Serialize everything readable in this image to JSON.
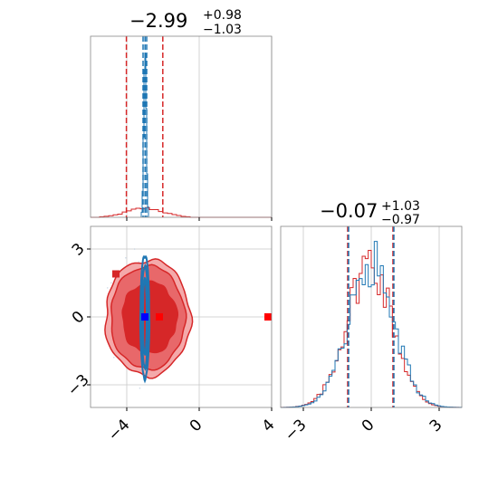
{
  "colors": {
    "red": "#d62728",
    "red_light": "#f4a9aa",
    "red_mid": "#e8686a",
    "blue": "#1f77b4",
    "blue_marker": "#0000ff",
    "red_marker": "#ff0000",
    "grid": "#c8c8c8",
    "axes": "#888888"
  },
  "chart_data": [
    {
      "type": "histogram",
      "panel": "top-left",
      "title": {
        "value": "−2.99",
        "plus": "+0.98",
        "minus": "−1.03"
      },
      "xlim": [
        -6,
        4
      ],
      "grid": true,
      "series": [
        {
          "name": "",
          "color": "#d62728",
          "quantiles": [
            -4.02,
            -2.99,
            -2.01
          ],
          "shape": "wide",
          "center": -2.99,
          "sigma": 1.0
        },
        {
          "name": "",
          "color": "#1f77b4",
          "quantiles": [
            -3.1,
            -2.99,
            -2.9
          ],
          "shape": "narrow",
          "center": -2.99,
          "sigma": 0.05
        }
      ]
    },
    {
      "type": "contour",
      "panel": "bottom-left",
      "xlim": [
        -6,
        4
      ],
      "ylim": [
        -4,
        4
      ],
      "xticks": [
        "−4",
        "0",
        "4"
      ],
      "yticks": [
        "3",
        "0",
        "−3"
      ],
      "xtick_values": [
        -4,
        0,
        4
      ],
      "ytick_values": [
        3,
        0,
        -3
      ],
      "grid": true,
      "red_center": [
        -2.99,
        -0.07
      ],
      "blue_center": [
        -3.0,
        0.0
      ],
      "markers": [
        {
          "x": -3.0,
          "y": 0.0,
          "color": "#0000ff"
        },
        {
          "x": -2.2,
          "y": 0.0,
          "color": "#ff0000"
        },
        {
          "x": 3.8,
          "y": 0.0,
          "color": "#ff0000"
        },
        {
          "x": -4.6,
          "y": 1.9,
          "color": "#d62728"
        }
      ]
    },
    {
      "type": "histogram",
      "panel": "bottom-right",
      "title": {
        "value": "−0.07",
        "plus": "+1.03",
        "minus": "−0.97"
      },
      "xlim": [
        -4,
        4
      ],
      "xticks": [
        "−3",
        "0",
        "3"
      ],
      "xtick_values": [
        -3,
        0,
        3
      ],
      "grid": true,
      "series": [
        {
          "name": "",
          "color": "#d62728",
          "quantiles": [
            -1.04,
            -0.07,
            0.96
          ],
          "center": -0.07,
          "sigma": 1.0
        },
        {
          "name": "",
          "color": "#1f77b4",
          "quantiles": [
            -1.0,
            0.0,
            1.0
          ],
          "center": 0.0,
          "sigma": 1.0
        }
      ]
    }
  ]
}
